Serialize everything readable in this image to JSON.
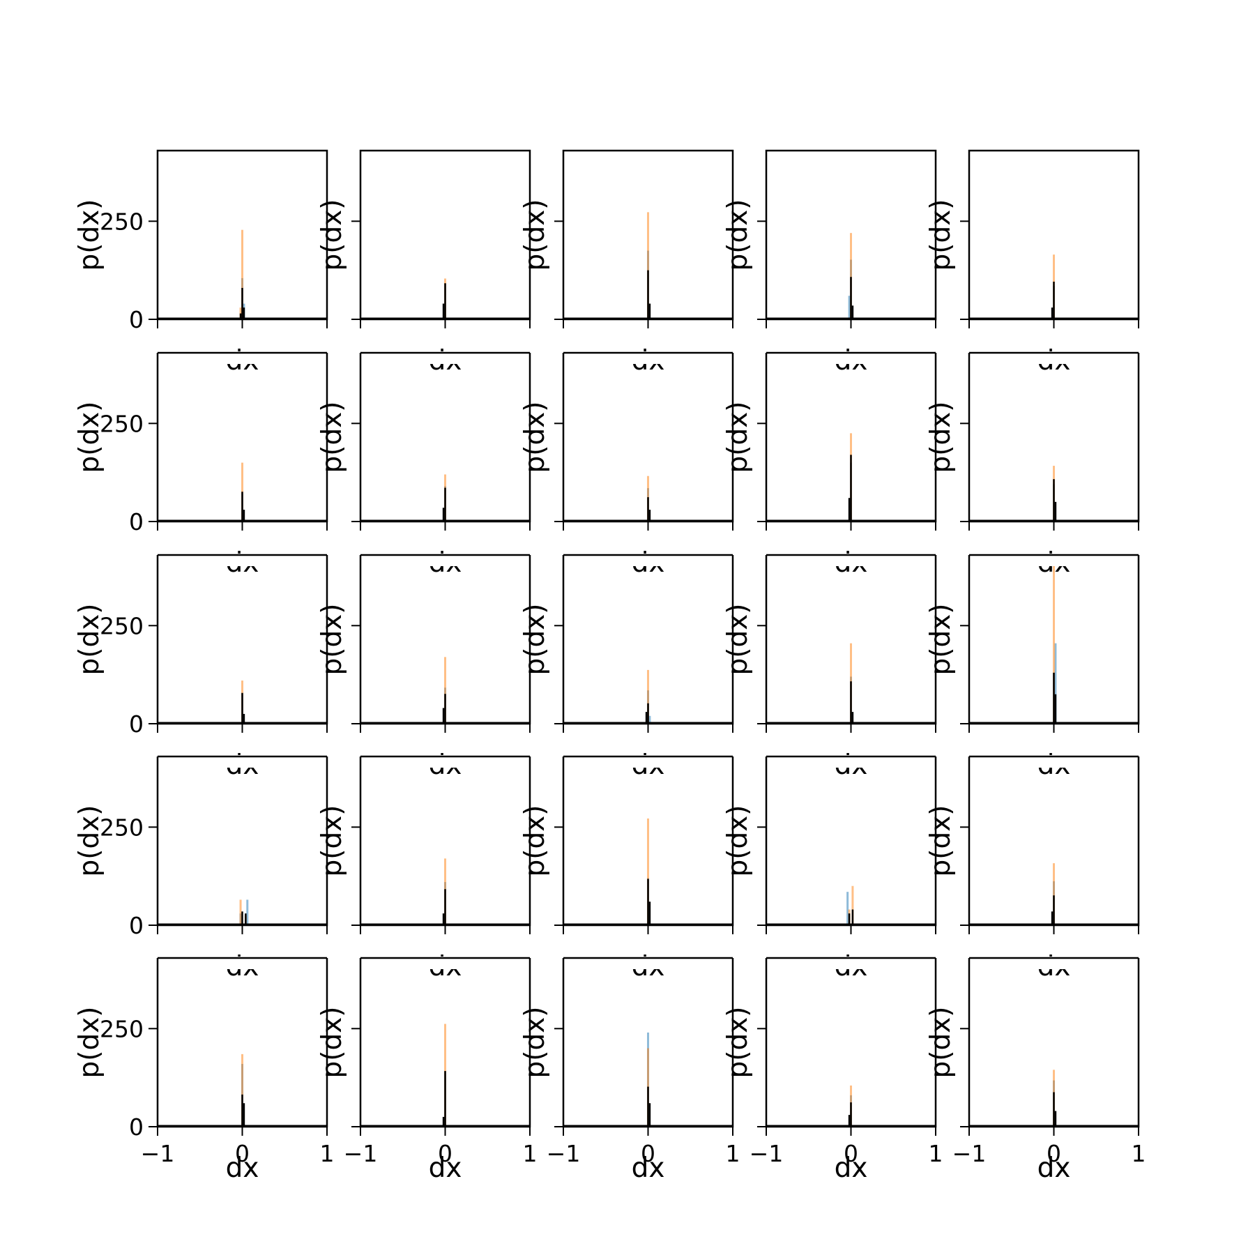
{
  "chart_data": {
    "type": "histogram-grid",
    "rows": 5,
    "cols": 5,
    "xlabel": "dx",
    "ylabel": "p(dx)",
    "xlim": [
      -1,
      1
    ],
    "ylim": [
      0,
      430
    ],
    "xticks": [
      -1,
      0,
      1
    ],
    "xtick_labels": [
      "−1",
      "0",
      "1"
    ],
    "yticks": [
      0,
      250
    ],
    "ytick_labels": [
      "0",
      "250"
    ],
    "colors": {
      "blue": "#1f77b4",
      "orange": "#ff7f0e",
      "black": "#000000",
      "axes": "#000000"
    },
    "bin_width": 0.02,
    "panels": [
      {
        "row": 0,
        "col": 0,
        "blue": [
          {
            "x": 0,
            "h": 105
          },
          {
            "x": 0.02,
            "h": 40
          }
        ],
        "orange": [
          {
            "x": 0,
            "h": 228
          },
          {
            "x": -0.02,
            "h": 30
          }
        ],
        "black": [
          {
            "x": 0,
            "h": 80
          },
          {
            "x": 0.02,
            "h": 30
          },
          {
            "x": -0.02,
            "h": 15
          }
        ]
      },
      {
        "row": 0,
        "col": 1,
        "blue": [
          {
            "x": 0,
            "h": 90
          }
        ],
        "orange": [
          {
            "x": 0,
            "h": 104
          }
        ],
        "black": [
          {
            "x": 0,
            "h": 92
          },
          {
            "x": -0.02,
            "h": 40
          }
        ]
      },
      {
        "row": 0,
        "col": 2,
        "blue": [
          {
            "x": 0,
            "h": 175
          }
        ],
        "orange": [
          {
            "x": 0,
            "h": 273
          }
        ],
        "black": [
          {
            "x": 0,
            "h": 125
          },
          {
            "x": 0.02,
            "h": 40
          }
        ]
      },
      {
        "row": 0,
        "col": 3,
        "blue": [
          {
            "x": 0,
            "h": 152
          },
          {
            "x": -0.02,
            "h": 60
          }
        ],
        "orange": [
          {
            "x": 0,
            "h": 220
          }
        ],
        "black": [
          {
            "x": 0,
            "h": 108
          },
          {
            "x": 0.02,
            "h": 35
          }
        ]
      },
      {
        "row": 0,
        "col": 4,
        "blue": [
          {
            "x": 0,
            "h": 85
          }
        ],
        "orange": [
          {
            "x": 0,
            "h": 165
          }
        ],
        "black": [
          {
            "x": 0,
            "h": 96
          },
          {
            "x": -0.02,
            "h": 30
          }
        ]
      },
      {
        "row": 1,
        "col": 0,
        "blue": [
          {
            "x": 0,
            "h": 72
          }
        ],
        "orange": [
          {
            "x": 0,
            "h": 150
          }
        ],
        "black": [
          {
            "x": 0,
            "h": 76
          },
          {
            "x": 0.02,
            "h": 30
          }
        ]
      },
      {
        "row": 1,
        "col": 1,
        "blue": [
          {
            "x": 0,
            "h": 90
          }
        ],
        "orange": [
          {
            "x": 0,
            "h": 120
          }
        ],
        "black": [
          {
            "x": 0,
            "h": 86
          },
          {
            "x": -0.02,
            "h": 35
          }
        ]
      },
      {
        "row": 1,
        "col": 2,
        "blue": [
          {
            "x": 0,
            "h": 85
          }
        ],
        "orange": [
          {
            "x": 0,
            "h": 116
          }
        ],
        "black": [
          {
            "x": 0,
            "h": 62
          },
          {
            "x": 0.02,
            "h": 30
          }
        ]
      },
      {
        "row": 1,
        "col": 3,
        "blue": [
          {
            "x": 0,
            "h": 150
          }
        ],
        "orange": [
          {
            "x": 0,
            "h": 225
          }
        ],
        "black": [
          {
            "x": 0,
            "h": 170
          },
          {
            "x": -0.02,
            "h": 60
          }
        ]
      },
      {
        "row": 1,
        "col": 4,
        "blue": [
          {
            "x": 0,
            "h": 95
          }
        ],
        "orange": [
          {
            "x": 0,
            "h": 142
          }
        ],
        "black": [
          {
            "x": 0,
            "h": 108
          },
          {
            "x": 0.02,
            "h": 50
          }
        ]
      },
      {
        "row": 2,
        "col": 0,
        "blue": [
          {
            "x": 0,
            "h": 80
          }
        ],
        "orange": [
          {
            "x": 0,
            "h": 110
          }
        ],
        "black": [
          {
            "x": 0,
            "h": 78
          },
          {
            "x": 0.02,
            "h": 25
          }
        ]
      },
      {
        "row": 2,
        "col": 1,
        "blue": [
          {
            "x": 0,
            "h": 92
          }
        ],
        "orange": [
          {
            "x": 0,
            "h": 170
          }
        ],
        "black": [
          {
            "x": 0,
            "h": 76
          },
          {
            "x": -0.02,
            "h": 40
          }
        ]
      },
      {
        "row": 2,
        "col": 2,
        "blue": [
          {
            "x": 0,
            "h": 85
          },
          {
            "x": 0.02,
            "h": 20
          }
        ],
        "orange": [
          {
            "x": 0,
            "h": 137
          }
        ],
        "black": [
          {
            "x": 0,
            "h": 52
          },
          {
            "x": -0.02,
            "h": 30
          }
        ]
      },
      {
        "row": 2,
        "col": 3,
        "blue": [
          {
            "x": 0,
            "h": 120
          }
        ],
        "orange": [
          {
            "x": 0,
            "h": 205
          }
        ],
        "black": [
          {
            "x": 0,
            "h": 108
          },
          {
            "x": 0.02,
            "h": 30
          }
        ]
      },
      {
        "row": 2,
        "col": 4,
        "blue": [
          {
            "x": 0.02,
            "h": 205
          },
          {
            "x": 0,
            "h": 130
          }
        ],
        "orange": [
          {
            "x": 0,
            "h": 410
          }
        ],
        "black": [
          {
            "x": 0,
            "h": 130
          },
          {
            "x": 0.02,
            "h": 75
          }
        ]
      },
      {
        "row": 3,
        "col": 0,
        "blue": [
          {
            "x": 0.06,
            "h": 65
          },
          {
            "x": -0.02,
            "h": 30
          }
        ],
        "orange": [
          {
            "x": -0.02,
            "h": 65
          },
          {
            "x": 0.04,
            "h": 25
          }
        ],
        "black": [
          {
            "x": 0,
            "h": 35
          },
          {
            "x": 0.04,
            "h": 30
          }
        ]
      },
      {
        "row": 3,
        "col": 1,
        "blue": [
          {
            "x": 0,
            "h": 110
          }
        ],
        "orange": [
          {
            "x": 0,
            "h": 170
          }
        ],
        "black": [
          {
            "x": 0,
            "h": 92
          },
          {
            "x": -0.02,
            "h": 30
          }
        ]
      },
      {
        "row": 3,
        "col": 2,
        "blue": [
          {
            "x": 0,
            "h": 120
          }
        ],
        "orange": [
          {
            "x": 0,
            "h": 272
          }
        ],
        "black": [
          {
            "x": 0,
            "h": 118
          },
          {
            "x": 0.02,
            "h": 60
          }
        ]
      },
      {
        "row": 3,
        "col": 3,
        "blue": [
          {
            "x": -0.04,
            "h": 85
          }
        ],
        "orange": [
          {
            "x": 0.02,
            "h": 100
          },
          {
            "x": -0.02,
            "h": 40
          }
        ],
        "black": [
          {
            "x": 0.02,
            "h": 40
          },
          {
            "x": -0.02,
            "h": 30
          }
        ]
      },
      {
        "row": 3,
        "col": 4,
        "blue": [
          {
            "x": 0,
            "h": 112
          }
        ],
        "orange": [
          {
            "x": 0,
            "h": 158
          }
        ],
        "black": [
          {
            "x": 0,
            "h": 76
          },
          {
            "x": -0.02,
            "h": 35
          }
        ]
      },
      {
        "row": 4,
        "col": 0,
        "blue": [
          {
            "x": 0,
            "h": 160
          }
        ],
        "orange": [
          {
            "x": 0,
            "h": 185
          }
        ],
        "black": [
          {
            "x": 0,
            "h": 82
          },
          {
            "x": 0.02,
            "h": 60
          }
        ]
      },
      {
        "row": 4,
        "col": 1,
        "blue": [
          {
            "x": 0,
            "h": 140
          }
        ],
        "orange": [
          {
            "x": 0,
            "h": 262
          }
        ],
        "black": [
          {
            "x": 0,
            "h": 142
          },
          {
            "x": -0.02,
            "h": 25
          }
        ]
      },
      {
        "row": 4,
        "col": 2,
        "blue": [
          {
            "x": 0,
            "h": 240
          }
        ],
        "orange": [
          {
            "x": 0,
            "h": 200
          }
        ],
        "black": [
          {
            "x": 0,
            "h": 102
          },
          {
            "x": 0.02,
            "h": 60
          }
        ]
      },
      {
        "row": 4,
        "col": 3,
        "blue": [
          {
            "x": 0,
            "h": 80
          }
        ],
        "orange": [
          {
            "x": 0,
            "h": 105
          }
        ],
        "black": [
          {
            "x": 0,
            "h": 62
          },
          {
            "x": -0.02,
            "h": 30
          }
        ]
      },
      {
        "row": 4,
        "col": 4,
        "blue": [
          {
            "x": 0,
            "h": 118
          }
        ],
        "orange": [
          {
            "x": 0,
            "h": 145
          }
        ],
        "black": [
          {
            "x": 0,
            "h": 88
          },
          {
            "x": 0.02,
            "h": 40
          }
        ]
      }
    ]
  }
}
